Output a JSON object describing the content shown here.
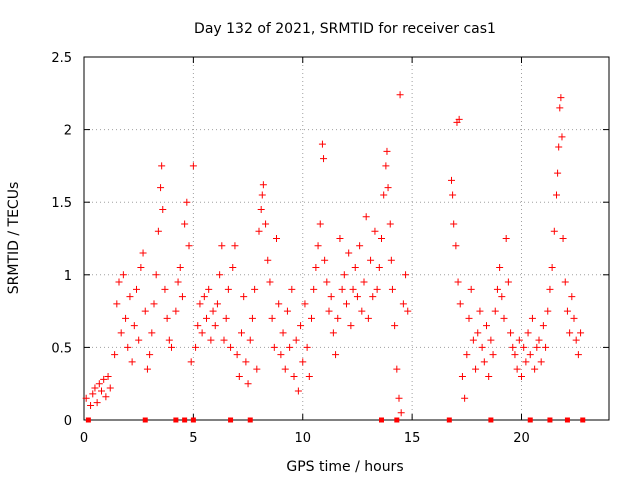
{
  "chart_data": {
    "type": "scatter",
    "title": "Day 132 of 2021, SRMTID for receiver cas1",
    "xlabel": "GPS time / hours",
    "ylabel": "SRMTID / TECUs",
    "xlim": [
      0,
      24
    ],
    "ylim": [
      0,
      2.5
    ],
    "xticks": [
      "0",
      "5",
      "10",
      "15",
      "20"
    ],
    "xtick_values": [
      0,
      5,
      10,
      15,
      20
    ],
    "yticks": [
      "0",
      "0.5",
      "1",
      "1.5",
      "2",
      "2.5"
    ],
    "ytick_values": [
      0,
      0.5,
      1,
      1.5,
      2,
      2.5
    ],
    "grid": true,
    "marker": "+",
    "series_color": "#ff0000",
    "series": [
      {
        "name": "SRMTID",
        "points": [
          [
            0.1,
            0.15
          ],
          [
            0.3,
            0.1
          ],
          [
            0.4,
            0.18
          ],
          [
            0.5,
            0.22
          ],
          [
            0.6,
            0.12
          ],
          [
            0.7,
            0.25
          ],
          [
            0.8,
            0.2
          ],
          [
            0.9,
            0.28
          ],
          [
            1.0,
            0.16
          ],
          [
            1.1,
            0.3
          ],
          [
            1.2,
            0.22
          ],
          [
            1.4,
            0.45
          ],
          [
            1.5,
            0.8
          ],
          [
            1.6,
            0.95
          ],
          [
            1.7,
            0.6
          ],
          [
            1.8,
            1.0
          ],
          [
            1.9,
            0.7
          ],
          [
            2.0,
            0.5
          ],
          [
            2.1,
            0.85
          ],
          [
            2.2,
            0.4
          ],
          [
            2.3,
            0.65
          ],
          [
            2.4,
            0.9
          ],
          [
            2.5,
            0.55
          ],
          [
            2.6,
            1.05
          ],
          [
            2.7,
            1.15
          ],
          [
            2.8,
            0.75
          ],
          [
            2.9,
            0.35
          ],
          [
            3.0,
            0.45
          ],
          [
            3.1,
            0.6
          ],
          [
            3.2,
            0.8
          ],
          [
            3.3,
            1.0
          ],
          [
            3.4,
            1.3
          ],
          [
            3.5,
            1.6
          ],
          [
            3.55,
            1.75
          ],
          [
            3.6,
            1.45
          ],
          [
            3.7,
            0.9
          ],
          [
            3.8,
            0.7
          ],
          [
            3.9,
            0.55
          ],
          [
            4.0,
            0.5
          ],
          [
            4.2,
            0.75
          ],
          [
            4.3,
            0.95
          ],
          [
            4.4,
            1.05
          ],
          [
            4.5,
            0.85
          ],
          [
            4.6,
            1.35
          ],
          [
            4.7,
            1.5
          ],
          [
            4.8,
            1.2
          ],
          [
            4.9,
            0.4
          ],
          [
            5.0,
            1.75
          ],
          [
            5.1,
            0.5
          ],
          [
            5.2,
            0.65
          ],
          [
            5.3,
            0.8
          ],
          [
            5.4,
            0.6
          ],
          [
            5.5,
            0.85
          ],
          [
            5.6,
            0.7
          ],
          [
            5.7,
            0.9
          ],
          [
            5.8,
            0.55
          ],
          [
            5.9,
            0.75
          ],
          [
            6.0,
            0.65
          ],
          [
            6.1,
            0.8
          ],
          [
            6.2,
            1.0
          ],
          [
            6.3,
            1.2
          ],
          [
            6.4,
            0.55
          ],
          [
            6.5,
            0.7
          ],
          [
            6.6,
            0.9
          ],
          [
            6.7,
            0.5
          ],
          [
            6.8,
            1.05
          ],
          [
            6.9,
            1.2
          ],
          [
            7.0,
            0.45
          ],
          [
            7.1,
            0.3
          ],
          [
            7.2,
            0.6
          ],
          [
            7.3,
            0.85
          ],
          [
            7.4,
            0.4
          ],
          [
            7.5,
            0.25
          ],
          [
            7.6,
            0.55
          ],
          [
            7.7,
            0.7
          ],
          [
            7.8,
            0.9
          ],
          [
            7.9,
            0.35
          ],
          [
            8.0,
            1.3
          ],
          [
            8.1,
            1.45
          ],
          [
            8.15,
            1.55
          ],
          [
            8.2,
            1.62
          ],
          [
            8.3,
            1.35
          ],
          [
            8.4,
            1.1
          ],
          [
            8.5,
            0.95
          ],
          [
            8.6,
            0.7
          ],
          [
            8.7,
            0.5
          ],
          [
            8.8,
            1.25
          ],
          [
            8.9,
            0.8
          ],
          [
            9.0,
            0.45
          ],
          [
            9.1,
            0.6
          ],
          [
            9.2,
            0.35
          ],
          [
            9.3,
            0.75
          ],
          [
            9.4,
            0.5
          ],
          [
            9.5,
            0.9
          ],
          [
            9.6,
            0.3
          ],
          [
            9.7,
            0.55
          ],
          [
            9.8,
            0.2
          ],
          [
            9.9,
            0.65
          ],
          [
            10.0,
            0.4
          ],
          [
            10.1,
            0.8
          ],
          [
            10.2,
            0.5
          ],
          [
            10.3,
            0.3
          ],
          [
            10.4,
            0.7
          ],
          [
            10.5,
            0.9
          ],
          [
            10.6,
            1.05
          ],
          [
            10.7,
            1.2
          ],
          [
            10.8,
            1.35
          ],
          [
            10.9,
            1.9
          ],
          [
            10.95,
            1.8
          ],
          [
            11.0,
            1.1
          ],
          [
            11.1,
            0.95
          ],
          [
            11.2,
            0.75
          ],
          [
            11.3,
            0.85
          ],
          [
            11.4,
            0.6
          ],
          [
            11.5,
            0.45
          ],
          [
            11.6,
            0.7
          ],
          [
            11.7,
            1.25
          ],
          [
            11.8,
            0.9
          ],
          [
            11.9,
            1.0
          ],
          [
            12.0,
            0.8
          ],
          [
            12.1,
            1.15
          ],
          [
            12.2,
            0.65
          ],
          [
            12.3,
            0.9
          ],
          [
            12.4,
            1.05
          ],
          [
            12.5,
            0.85
          ],
          [
            12.6,
            1.2
          ],
          [
            12.7,
            0.75
          ],
          [
            12.8,
            0.95
          ],
          [
            12.9,
            1.4
          ],
          [
            13.0,
            0.7
          ],
          [
            13.1,
            1.1
          ],
          [
            13.2,
            0.85
          ],
          [
            13.3,
            1.3
          ],
          [
            13.4,
            0.9
          ],
          [
            13.5,
            1.05
          ],
          [
            13.6,
            1.25
          ],
          [
            13.7,
            1.55
          ],
          [
            13.8,
            1.75
          ],
          [
            13.85,
            1.85
          ],
          [
            13.9,
            1.6
          ],
          [
            14.0,
            1.35
          ],
          [
            14.05,
            1.1
          ],
          [
            14.1,
            0.9
          ],
          [
            14.2,
            0.65
          ],
          [
            14.3,
            0.35
          ],
          [
            14.4,
            0.15
          ],
          [
            14.45,
            2.24
          ],
          [
            14.5,
            0.05
          ],
          [
            14.6,
            0.8
          ],
          [
            14.7,
            1.0
          ],
          [
            14.8,
            0.75
          ],
          [
            16.8,
            1.65
          ],
          [
            16.85,
            1.55
          ],
          [
            16.9,
            1.35
          ],
          [
            17.0,
            1.2
          ],
          [
            17.05,
            2.05
          ],
          [
            17.1,
            0.95
          ],
          [
            17.15,
            2.07
          ],
          [
            17.2,
            0.8
          ],
          [
            17.3,
            0.3
          ],
          [
            17.4,
            0.15
          ],
          [
            17.5,
            0.45
          ],
          [
            17.6,
            0.7
          ],
          [
            17.7,
            0.9
          ],
          [
            17.8,
            0.55
          ],
          [
            17.9,
            0.35
          ],
          [
            18.0,
            0.6
          ],
          [
            18.1,
            0.75
          ],
          [
            18.2,
            0.5
          ],
          [
            18.3,
            0.4
          ],
          [
            18.4,
            0.65
          ],
          [
            18.5,
            0.3
          ],
          [
            18.6,
            0.55
          ],
          [
            18.7,
            0.45
          ],
          [
            18.8,
            0.75
          ],
          [
            18.9,
            0.9
          ],
          [
            19.0,
            1.05
          ],
          [
            19.1,
            0.85
          ],
          [
            19.2,
            0.7
          ],
          [
            19.3,
            1.25
          ],
          [
            19.4,
            0.95
          ],
          [
            19.5,
            0.6
          ],
          [
            19.6,
            0.5
          ],
          [
            19.7,
            0.45
          ],
          [
            19.8,
            0.35
          ],
          [
            19.9,
            0.55
          ],
          [
            20.0,
            0.3
          ],
          [
            20.1,
            0.5
          ],
          [
            20.2,
            0.4
          ],
          [
            20.3,
            0.6
          ],
          [
            20.4,
            0.45
          ],
          [
            20.5,
            0.7
          ],
          [
            20.6,
            0.35
          ],
          [
            20.7,
            0.5
          ],
          [
            20.8,
            0.55
          ],
          [
            20.9,
            0.4
          ],
          [
            21.0,
            0.65
          ],
          [
            21.1,
            0.5
          ],
          [
            21.2,
            0.75
          ],
          [
            21.3,
            0.9
          ],
          [
            21.4,
            1.05
          ],
          [
            21.5,
            1.3
          ],
          [
            21.6,
            1.55
          ],
          [
            21.65,
            1.7
          ],
          [
            21.7,
            1.88
          ],
          [
            21.75,
            2.15
          ],
          [
            21.8,
            2.22
          ],
          [
            21.85,
            1.95
          ],
          [
            21.9,
            1.25
          ],
          [
            22.0,
            0.95
          ],
          [
            22.1,
            0.75
          ],
          [
            22.2,
            0.6
          ],
          [
            22.3,
            0.85
          ],
          [
            22.4,
            0.7
          ],
          [
            22.5,
            0.55
          ],
          [
            22.6,
            0.45
          ],
          [
            22.7,
            0.6
          ]
        ]
      }
    ],
    "baseline_markers": {
      "name": "zero markers",
      "x": [
        0.2,
        2.8,
        4.2,
        4.6,
        5.0,
        6.7,
        7.6,
        13.6,
        14.3,
        16.7,
        18.6,
        20.4,
        21.3,
        22.1,
        22.8
      ],
      "y": 0
    }
  }
}
